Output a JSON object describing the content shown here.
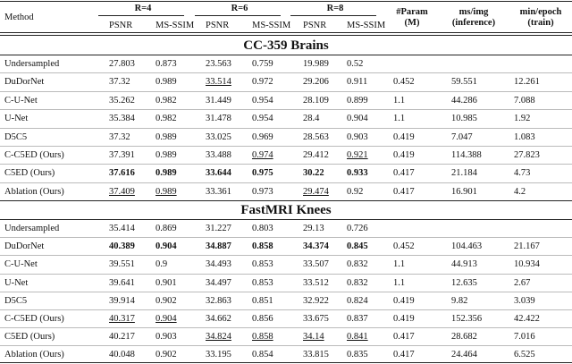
{
  "header": {
    "method": "Method",
    "groups": [
      {
        "label": "R=4",
        "sub": [
          "PSNR",
          "MS-SSIM"
        ]
      },
      {
        "label": "R=6",
        "sub": [
          "PSNR",
          "MS-SSIM"
        ]
      },
      {
        "label": "R=8",
        "sub": [
          "PSNR",
          "MS-SSIM"
        ]
      }
    ],
    "extra": [
      {
        "line1": "#Param",
        "line2": "(M)"
      },
      {
        "line1": "ms/img",
        "line2": "(inference)"
      },
      {
        "line1": "min/epoch",
        "line2": "(train)"
      }
    ]
  },
  "sections": [
    {
      "title": "CC-359 Brains",
      "rows": [
        {
          "cells": [
            "Undersampled",
            "27.803",
            "0.873",
            "23.563",
            "0.759",
            "19.989",
            "0.52"
          ],
          "bold": [],
          "underline": []
        },
        {
          "cells": [
            "DuDorNet",
            "37.32",
            "0.989",
            "33.514",
            "0.972",
            "29.206",
            "0.911",
            "0.452",
            "59.551",
            "12.261"
          ],
          "bold": [],
          "underline": [
            3
          ]
        },
        {
          "cells": [
            "C-U-Net",
            "35.262",
            "0.982",
            "31.449",
            "0.954",
            "28.109",
            "0.899",
            "1.1",
            "44.286",
            "7.088"
          ],
          "bold": [],
          "underline": []
        },
        {
          "cells": [
            "U-Net",
            "35.384",
            "0.982",
            "31.478",
            "0.954",
            "28.4",
            "0.904",
            "1.1",
            "10.985",
            "1.92"
          ],
          "bold": [],
          "underline": []
        },
        {
          "cells": [
            "D5C5",
            "37.32",
            "0.989",
            "33.025",
            "0.969",
            "28.563",
            "0.903",
            "0.419",
            "7.047",
            "1.083"
          ],
          "bold": [],
          "underline": []
        },
        {
          "cells": [
            "C-C5ED (Ours)",
            "37.391",
            "0.989",
            "33.488",
            "0.974",
            "29.412",
            "0.921",
            "0.419",
            "114.388",
            "27.823"
          ],
          "bold": [],
          "underline": [
            4,
            6
          ]
        },
        {
          "cells": [
            "C5ED (Ours)",
            "37.616",
            "0.989",
            "33.644",
            "0.975",
            "30.22",
            "0.933",
            "0.417",
            "21.184",
            "4.73"
          ],
          "bold": [
            1,
            2,
            3,
            4,
            5,
            6
          ],
          "underline": []
        },
        {
          "cells": [
            "Ablation (Ours)",
            "37.409",
            "0.989",
            "33.361",
            "0.973",
            "29.474",
            "0.92",
            "0.417",
            "16.901",
            "4.2"
          ],
          "bold": [],
          "underline": [
            1,
            2,
            5
          ]
        }
      ]
    },
    {
      "title": "FastMRI Knees",
      "rows": [
        {
          "cells": [
            "Undersampled",
            "35.414",
            "0.869",
            "31.227",
            "0.803",
            "29.13",
            "0.726"
          ],
          "bold": [],
          "underline": []
        },
        {
          "cells": [
            "DuDorNet",
            "40.389",
            "0.904",
            "34.887",
            "0.858",
            "34.374",
            "0.845",
            "0.452",
            "104.463",
            "21.167"
          ],
          "bold": [
            1,
            2,
            3,
            4,
            5,
            6
          ],
          "underline": []
        },
        {
          "cells": [
            "C-U-Net",
            "39.551",
            "0.9",
            "34.493",
            "0.853",
            "33.507",
            "0.832",
            "1.1",
            "44.913",
            "10.934"
          ],
          "bold": [],
          "underline": []
        },
        {
          "cells": [
            "U-Net",
            "39.641",
            "0.901",
            "34.497",
            "0.853",
            "33.512",
            "0.832",
            "1.1",
            "12.635",
            "2.67"
          ],
          "bold": [],
          "underline": []
        },
        {
          "cells": [
            "D5C5",
            "39.914",
            "0.902",
            "32.863",
            "0.851",
            "32.922",
            "0.824",
            "0.419",
            "9.82",
            "3.039"
          ],
          "bold": [],
          "underline": []
        },
        {
          "cells": [
            "C-C5ED (Ours)",
            "40.317",
            "0.904",
            "34.662",
            "0.856",
            "33.675",
            "0.837",
            "0.419",
            "152.356",
            "42.422"
          ],
          "bold": [],
          "underline": [
            1,
            2
          ]
        },
        {
          "cells": [
            "C5ED (Ours)",
            "40.217",
            "0.903",
            "34.824",
            "0.858",
            "34.14",
            "0.841",
            "0.417",
            "28.682",
            "7.016"
          ],
          "bold": [],
          "underline": [
            3,
            4,
            5,
            6
          ]
        },
        {
          "cells": [
            "Ablation (Ours)",
            "40.048",
            "0.902",
            "33.195",
            "0.854",
            "33.815",
            "0.835",
            "0.417",
            "24.464",
            "6.525"
          ],
          "bold": [],
          "underline": []
        }
      ]
    }
  ]
}
